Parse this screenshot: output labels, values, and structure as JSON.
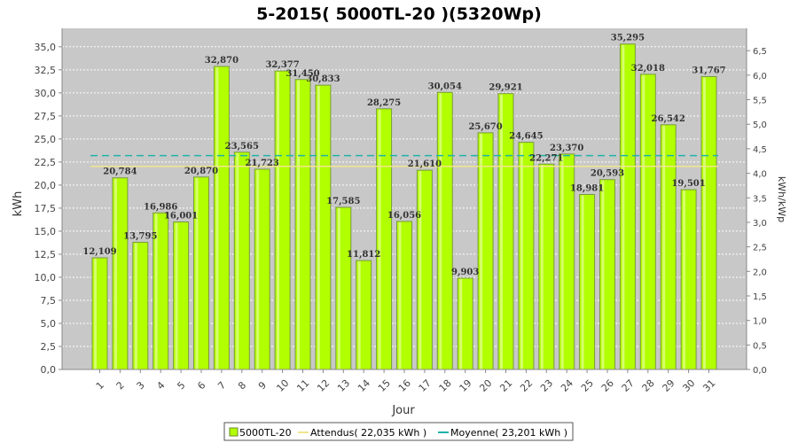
{
  "chart_data": {
    "type": "bar",
    "title": "5-2015( 5000TL-20 )(5320Wp)",
    "xlabel": "Jour",
    "ylabel": "kWh",
    "y2label": "kWh/kWp",
    "categories": [
      "1",
      "2",
      "3",
      "4",
      "5",
      "6",
      "7",
      "8",
      "9",
      "10",
      "11",
      "12",
      "13",
      "14",
      "15",
      "16",
      "17",
      "18",
      "19",
      "20",
      "21",
      "22",
      "23",
      "24",
      "25",
      "26",
      "27",
      "28",
      "29",
      "30",
      "31"
    ],
    "series": [
      {
        "name": "5000TL-20",
        "values": [
          12.109,
          20.784,
          13.795,
          16.986,
          16.001,
          20.87,
          32.87,
          23.565,
          21.723,
          32.377,
          31.45,
          30.833,
          17.585,
          11.812,
          28.275,
          16.056,
          21.61,
          30.054,
          9.903,
          25.67,
          29.921,
          24.645,
          22.271,
          23.37,
          18.981,
          20.593,
          35.295,
          32.018,
          26.542,
          19.501,
          31.767
        ],
        "labels": [
          "12,109",
          "20,784",
          "13,795",
          "16,986",
          "16,001",
          "20,870",
          "32,870",
          "23,565",
          "21,723",
          "32,377",
          "31,450",
          "30,833",
          "17,585",
          "11,812",
          "28,275",
          "16,056",
          "21,610",
          "30,054",
          "9,903",
          "25,670",
          "29,921",
          "24,645",
          "22,271",
          "23,370",
          "18,981",
          "20,593",
          "35,295",
          "32,018",
          "26,542",
          "19,501",
          "31,767"
        ]
      }
    ],
    "lines": [
      {
        "name": "Attendus",
        "value": 22.035,
        "color": "#f0e68c",
        "style": "solid"
      },
      {
        "name": "Moyenne",
        "value": 23.201,
        "color": "#20b2aa",
        "style": "dashed"
      }
    ],
    "ylim": [
      0,
      37.0
    ],
    "yticks": [
      "0,0",
      "2,5",
      "5,0",
      "7,5",
      "10,0",
      "12,5",
      "15,0",
      "17,5",
      "20,0",
      "22,5",
      "25,0",
      "27,5",
      "30,0",
      "32,5",
      "35,0"
    ],
    "y2lim": [
      0,
      6.955
    ],
    "y2ticks": [
      "0,0",
      "0,5",
      "1,0",
      "1,5",
      "2,0",
      "2,5",
      "3,0",
      "3,5",
      "4,0",
      "4,5",
      "5,0",
      "5,5",
      "6,0",
      "6,5"
    ],
    "legend": {
      "position": "bottom",
      "items": [
        "5000TL-20",
        "Attendus( 22,035 kWh )",
        "Moyenne( 23,201 kWh )"
      ]
    },
    "colors": {
      "bar": "#b2ff00",
      "bar_border": "#7a9a40",
      "plot_bg": "#c8c8c8",
      "grid": "#ffffff"
    },
    "grid": true
  }
}
